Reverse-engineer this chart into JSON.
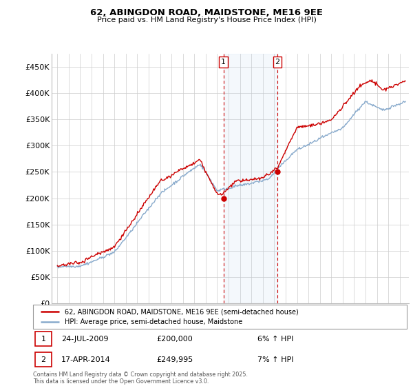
{
  "title": "62, ABINGDON ROAD, MAIDSTONE, ME16 9EE",
  "subtitle": "Price paid vs. HM Land Registry's House Price Index (HPI)",
  "ylim": [
    0,
    475000
  ],
  "yticks": [
    0,
    50000,
    100000,
    150000,
    200000,
    250000,
    300000,
    350000,
    400000,
    450000
  ],
  "ytick_labels": [
    "£0",
    "£50K",
    "£100K",
    "£150K",
    "£200K",
    "£250K",
    "£300K",
    "£350K",
    "£400K",
    "£450K"
  ],
  "legend_line1": "62, ABINGDON ROAD, MAIDSTONE, ME16 9EE (semi-detached house)",
  "legend_line2": "HPI: Average price, semi-detached house, Maidstone",
  "note1_date": "24-JUL-2009",
  "note1_price": "£200,000",
  "note1_hpi": "6% ↑ HPI",
  "note2_date": "17-APR-2014",
  "note2_price": "£249,995",
  "note2_hpi": "7% ↑ HPI",
  "footer": "Contains HM Land Registry data © Crown copyright and database right 2025.\nThis data is licensed under the Open Government Licence v3.0.",
  "red_color": "#cc0000",
  "blue_color": "#88aacc",
  "marker1_x": 2009.56,
  "marker1_y": 200000,
  "marker2_x": 2014.29,
  "marker2_y": 249995,
  "shade_xmin": 2009.56,
  "shade_xmax": 2014.29,
  "xmin": 1994.5,
  "xmax": 2025.8
}
